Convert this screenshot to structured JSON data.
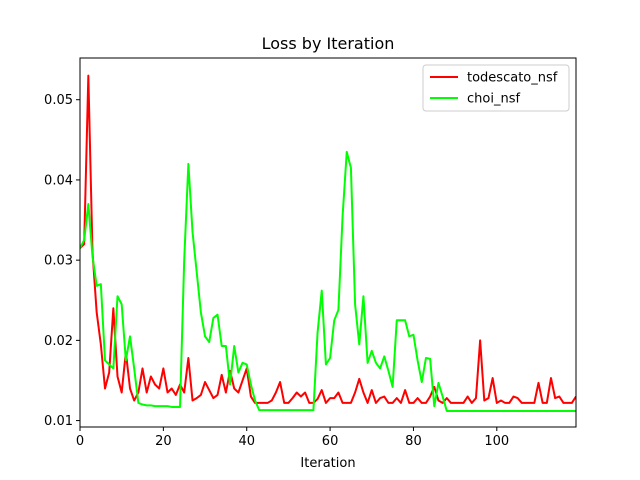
{
  "chart_data": {
    "type": "line",
    "title": "Loss by Iteration",
    "xlabel": "Iteration",
    "ylabel": "",
    "xlim": [
      0,
      119
    ],
    "ylim": [
      0.0092,
      0.0552
    ],
    "xticks": [
      0,
      20,
      40,
      60,
      80,
      100
    ],
    "yticks": [
      0.01,
      0.02,
      0.03,
      0.04,
      0.05
    ],
    "grid": false,
    "legend_position": "top-right",
    "series": [
      {
        "name": "todescato_nsf",
        "color": "#ff0000",
        "x": [
          0,
          1,
          2,
          3,
          4,
          5,
          6,
          7,
          8,
          9,
          10,
          11,
          12,
          13,
          14,
          15,
          16,
          17,
          18,
          19,
          20,
          21,
          22,
          23,
          24,
          25,
          26,
          27,
          28,
          29,
          30,
          31,
          32,
          33,
          34,
          35,
          36,
          37,
          38,
          39,
          40,
          41,
          42,
          43,
          44,
          45,
          46,
          47,
          48,
          49,
          50,
          51,
          52,
          53,
          54,
          55,
          56,
          57,
          58,
          59,
          60,
          61,
          62,
          63,
          64,
          65,
          66,
          67,
          68,
          69,
          70,
          71,
          72,
          73,
          74,
          75,
          76,
          77,
          78,
          79,
          80,
          81,
          82,
          83,
          84,
          85,
          86,
          87,
          88,
          89,
          90,
          91,
          92,
          93,
          94,
          95,
          96,
          97,
          98,
          99,
          100,
          101,
          102,
          103,
          104,
          105,
          106,
          107,
          108,
          109,
          110,
          111,
          112,
          113,
          114,
          115,
          116,
          117,
          118,
          119
        ],
        "y": [
          0.0315,
          0.032,
          0.053,
          0.031,
          0.0235,
          0.0195,
          0.014,
          0.016,
          0.024,
          0.0155,
          0.0135,
          0.0185,
          0.014,
          0.0125,
          0.0135,
          0.0165,
          0.0135,
          0.0155,
          0.0145,
          0.014,
          0.0165,
          0.0135,
          0.014,
          0.0132,
          0.0145,
          0.0135,
          0.0178,
          0.0125,
          0.0128,
          0.0132,
          0.0148,
          0.0138,
          0.0128,
          0.0132,
          0.0157,
          0.0135,
          0.0162,
          0.014,
          0.0135,
          0.015,
          0.0165,
          0.013,
          0.0122,
          0.0122,
          0.0122,
          0.0122,
          0.0125,
          0.0135,
          0.0148,
          0.0122,
          0.0122,
          0.0128,
          0.0135,
          0.013,
          0.0135,
          0.0122,
          0.0122,
          0.0127,
          0.0138,
          0.0122,
          0.0128,
          0.0128,
          0.0135,
          0.0122,
          0.0122,
          0.0122,
          0.0135,
          0.0152,
          0.0135,
          0.0122,
          0.0138,
          0.0122,
          0.0128,
          0.013,
          0.0122,
          0.0122,
          0.0128,
          0.0122,
          0.0138,
          0.0122,
          0.0122,
          0.0128,
          0.0122,
          0.0122,
          0.013,
          0.0142,
          0.0125,
          0.0122,
          0.0128,
          0.0122,
          0.0122,
          0.0122,
          0.0122,
          0.013,
          0.0122,
          0.0128,
          0.02,
          0.0125,
          0.0128,
          0.0153,
          0.0122,
          0.0125,
          0.0122,
          0.0122,
          0.013,
          0.0128,
          0.0122,
          0.0122,
          0.0122,
          0.0122,
          0.0147,
          0.0122,
          0.0122,
          0.0153,
          0.0128,
          0.013,
          0.0122,
          0.0122,
          0.0122,
          0.013
        ]
      },
      {
        "name": "choi_nsf",
        "color": "#00ff00",
        "x": [
          0,
          1,
          2,
          3,
          4,
          5,
          6,
          7,
          8,
          9,
          10,
          11,
          12,
          13,
          14,
          15,
          16,
          17,
          18,
          19,
          20,
          21,
          22,
          23,
          24,
          25,
          26,
          27,
          28,
          29,
          30,
          31,
          32,
          33,
          34,
          35,
          36,
          37,
          38,
          39,
          40,
          41,
          42,
          43,
          44,
          45,
          46,
          47,
          48,
          49,
          50,
          51,
          52,
          53,
          54,
          55,
          56,
          57,
          58,
          59,
          60,
          61,
          62,
          63,
          64,
          65,
          66,
          67,
          68,
          69,
          70,
          71,
          72,
          73,
          74,
          75,
          76,
          77,
          78,
          79,
          80,
          81,
          82,
          83,
          84,
          85,
          86,
          87,
          88,
          89,
          90,
          91,
          92,
          93,
          94,
          95,
          96,
          97,
          98,
          99,
          100,
          101,
          102,
          103,
          104,
          105,
          106,
          107,
          108,
          109,
          110,
          111,
          112,
          113,
          114,
          115,
          116,
          117,
          118,
          119
        ],
        "y": [
          0.0315,
          0.0325,
          0.037,
          0.0305,
          0.0268,
          0.027,
          0.0175,
          0.017,
          0.0165,
          0.0255,
          0.0245,
          0.0175,
          0.0205,
          0.0165,
          0.0122,
          0.012,
          0.0119,
          0.0119,
          0.0118,
          0.0118,
          0.0118,
          0.0118,
          0.0117,
          0.0117,
          0.0117,
          0.03,
          0.042,
          0.0335,
          0.0285,
          0.0235,
          0.0205,
          0.0198,
          0.0228,
          0.0232,
          0.0193,
          0.0193,
          0.0145,
          0.0193,
          0.016,
          0.0172,
          0.017,
          0.0145,
          0.0125,
          0.0113,
          0.0113,
          0.0113,
          0.0113,
          0.0113,
          0.0113,
          0.0113,
          0.0113,
          0.0113,
          0.0113,
          0.0113,
          0.0113,
          0.0113,
          0.0113,
          0.021,
          0.0262,
          0.017,
          0.0178,
          0.0225,
          0.0238,
          0.0355,
          0.0435,
          0.0415,
          0.0245,
          0.0195,
          0.0255,
          0.0172,
          0.0187,
          0.0172,
          0.0165,
          0.018,
          0.0162,
          0.0142,
          0.0225,
          0.0225,
          0.0225,
          0.0205,
          0.0207,
          0.0175,
          0.0148,
          0.0178,
          0.0177,
          0.0118,
          0.0147,
          0.013,
          0.0112,
          0.0112,
          0.0112,
          0.0112,
          0.0112,
          0.0112,
          0.0112,
          0.0112,
          0.0112,
          0.0112,
          0.0112,
          0.0112,
          0.0112,
          0.0112,
          0.0112,
          0.0112,
          0.0112,
          0.0112,
          0.0112,
          0.0112,
          0.0112,
          0.0112,
          0.0112,
          0.0112,
          0.0112,
          0.0112,
          0.0112,
          0.0112,
          0.0112,
          0.0112,
          0.0112,
          0.0112
        ]
      }
    ]
  }
}
